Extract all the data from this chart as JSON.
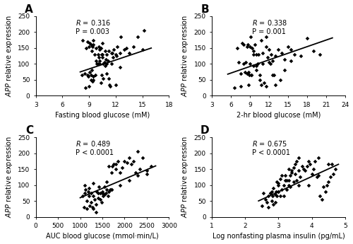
{
  "panels": [
    {
      "label": "A",
      "xlabel": "Fasting blood glucose (mM)",
      "xlim": [
        3,
        18
      ],
      "ylim": [
        0,
        250
      ],
      "xticks": [
        3,
        6,
        9,
        12,
        15,
        18
      ],
      "yticks": [
        0,
        50,
        100,
        150,
        200,
        250
      ],
      "R": "0.316",
      "P": "P = 0.003",
      "x": [
        8.2,
        8.5,
        8.6,
        8.7,
        8.8,
        8.9,
        9.0,
        9.0,
        9.1,
        9.1,
        9.2,
        9.2,
        9.3,
        9.3,
        9.4,
        9.4,
        9.5,
        9.5,
        9.5,
        9.6,
        9.7,
        9.8,
        9.9,
        10.0,
        10.0,
        10.1,
        10.1,
        10.2,
        10.2,
        10.3,
        10.3,
        10.4,
        10.4,
        10.5,
        10.5,
        10.6,
        10.6,
        10.7,
        10.8,
        10.8,
        10.9,
        11.0,
        11.0,
        11.1,
        11.2,
        11.3,
        11.4,
        11.5,
        11.5,
        11.6,
        11.7,
        11.8,
        12.0,
        12.1,
        12.2,
        12.5,
        12.6,
        13.0,
        13.2,
        13.5,
        14.0,
        14.5,
        15.0,
        15.2,
        8.3,
        9.2,
        9.8,
        10.5,
        11.2,
        12.0,
        8.8,
        9.5,
        10.2,
        11.0,
        12.5
      ],
      "y": [
        65,
        70,
        25,
        150,
        170,
        60,
        155,
        30,
        75,
        165,
        160,
        50,
        140,
        80,
        155,
        45,
        50,
        160,
        175,
        130,
        65,
        150,
        100,
        130,
        100,
        155,
        120,
        145,
        110,
        40,
        150,
        65,
        130,
        130,
        165,
        55,
        100,
        105,
        140,
        95,
        115,
        100,
        130,
        110,
        55,
        35,
        30,
        135,
        100,
        135,
        120,
        145,
        35,
        125,
        155,
        135,
        185,
        145,
        150,
        135,
        155,
        185,
        145,
        205,
        175,
        65,
        110,
        120,
        140,
        130,
        65,
        60,
        100,
        70,
        90
      ],
      "line_x": [
        8.0,
        16.0
      ],
      "line_y": [
        75,
        150
      ]
    },
    {
      "label": "B",
      "xlabel": "2-hr blood glucose (mM)",
      "xlim": [
        3,
        24
      ],
      "ylim": [
        0,
        250
      ],
      "xticks": [
        3,
        6,
        9,
        12,
        15,
        18,
        21,
        24
      ],
      "yticks": [
        0,
        50,
        100,
        150,
        200,
        250
      ],
      "R": "0.338",
      "P": "P = 0.001",
      "x": [
        6.5,
        7.0,
        7.2,
        7.5,
        7.8,
        8.0,
        8.0,
        8.2,
        8.3,
        8.5,
        8.5,
        8.7,
        8.8,
        8.9,
        9.0,
        9.0,
        9.1,
        9.2,
        9.3,
        9.5,
        9.5,
        9.6,
        9.8,
        10.0,
        10.0,
        10.2,
        10.3,
        10.5,
        10.5,
        10.8,
        11.0,
        11.0,
        11.2,
        11.5,
        11.5,
        11.8,
        12.0,
        12.0,
        12.3,
        12.5,
        12.5,
        13.0,
        13.0,
        13.5,
        14.0,
        14.5,
        15.0,
        15.5,
        16.0,
        17.0,
        18.0,
        19.0,
        20.0,
        7.5,
        8.8,
        10.0,
        11.5,
        12.8,
        14.5,
        9.2,
        10.8,
        12.2,
        13.8,
        15.5
      ],
      "y": [
        25,
        150,
        105,
        30,
        165,
        160,
        100,
        75,
        105,
        155,
        70,
        160,
        35,
        65,
        155,
        100,
        185,
        65,
        150,
        140,
        130,
        95,
        160,
        80,
        130,
        100,
        130,
        50,
        65,
        175,
        135,
        100,
        40,
        30,
        185,
        120,
        145,
        105,
        130,
        110,
        65,
        35,
        125,
        145,
        135,
        115,
        155,
        145,
        130,
        125,
        180,
        140,
        130,
        70,
        75,
        95,
        155,
        65,
        80,
        65,
        35,
        100,
        50,
        110
      ],
      "line_x": [
        5.5,
        22.0
      ],
      "line_y": [
        68,
        182
      ]
    },
    {
      "label": "C",
      "xlabel": "AUC blood glucose (mmol·min/L)",
      "xlim": [
        0,
        3000
      ],
      "ylim": [
        0,
        250
      ],
      "xticks": [
        0,
        500,
        1000,
        1500,
        2000,
        2500,
        3000
      ],
      "yticks": [
        0,
        50,
        100,
        150,
        200,
        250
      ],
      "R": "0.489",
      "P": "P < 0.0001",
      "x": [
        1050,
        1080,
        1100,
        1120,
        1150,
        1150,
        1180,
        1200,
        1200,
        1220,
        1250,
        1250,
        1280,
        1300,
        1300,
        1320,
        1350,
        1350,
        1380,
        1400,
        1400,
        1420,
        1450,
        1450,
        1480,
        1500,
        1500,
        1520,
        1550,
        1550,
        1580,
        1600,
        1600,
        1620,
        1650,
        1650,
        1680,
        1700,
        1700,
        1720,
        1750,
        1800,
        1800,
        1850,
        1900,
        1950,
        2000,
        2050,
        2100,
        2150,
        2200,
        2250,
        2300,
        2350,
        2400,
        2500,
        2600,
        1100,
        1300,
        1500,
        1700,
        1900,
        2100,
        2300,
        2500
      ],
      "y": [
        65,
        30,
        75,
        85,
        25,
        50,
        80,
        65,
        90,
        35,
        45,
        75,
        30,
        25,
        65,
        55,
        15,
        40,
        80,
        60,
        75,
        95,
        75,
        55,
        45,
        80,
        75,
        65,
        70,
        95,
        75,
        85,
        110,
        65,
        80,
        160,
        85,
        140,
        85,
        160,
        165,
        165,
        150,
        175,
        140,
        155,
        175,
        170,
        185,
        165,
        175,
        140,
        205,
        150,
        185,
        145,
        160,
        100,
        105,
        75,
        85,
        100,
        115,
        130,
        135
      ],
      "line_x": [
        1000,
        2700
      ],
      "line_y": [
        60,
        160
      ]
    },
    {
      "label": "D",
      "xlabel": "Log nonfasting plasma insulin (pg/mL)",
      "xlim": [
        1,
        5
      ],
      "ylim": [
        0,
        250
      ],
      "xticks": [
        1,
        2,
        3,
        4,
        5
      ],
      "yticks": [
        0,
        50,
        100,
        150,
        200,
        250
      ],
      "R": "0.675",
      "P": "P < 0.0001",
      "x": [
        2.5,
        2.6,
        2.65,
        2.7,
        2.7,
        2.75,
        2.8,
        2.8,
        2.82,
        2.85,
        2.85,
        2.9,
        2.9,
        2.92,
        2.95,
        2.95,
        3.0,
        3.0,
        3.0,
        3.05,
        3.05,
        3.1,
        3.1,
        3.15,
        3.15,
        3.2,
        3.2,
        3.25,
        3.25,
        3.3,
        3.3,
        3.35,
        3.35,
        3.4,
        3.4,
        3.45,
        3.45,
        3.5,
        3.5,
        3.55,
        3.55,
        3.6,
        3.6,
        3.65,
        3.7,
        3.75,
        3.8,
        3.85,
        3.9,
        3.95,
        4.0,
        4.05,
        4.1,
        4.15,
        4.2,
        4.25,
        4.3,
        4.35,
        4.4,
        4.45,
        4.5,
        4.55,
        4.6,
        4.65,
        4.7,
        2.55,
        2.75,
        3.0,
        3.3,
        3.6,
        3.9,
        4.2,
        4.5
      ],
      "y": [
        35,
        55,
        45,
        65,
        30,
        75,
        80,
        50,
        65,
        40,
        90,
        70,
        45,
        80,
        110,
        65,
        105,
        80,
        100,
        65,
        120,
        85,
        130,
        100,
        65,
        115,
        130,
        85,
        115,
        100,
        150,
        130,
        95,
        140,
        145,
        110,
        155,
        165,
        135,
        115,
        175,
        145,
        185,
        125,
        160,
        150,
        145,
        160,
        175,
        165,
        135,
        150,
        175,
        125,
        185,
        65,
        55,
        95,
        80,
        100,
        110,
        125,
        165,
        135,
        150,
        75,
        75,
        80,
        115,
        100,
        100,
        130,
        165
      ],
      "line_x": [
        2.4,
        4.8
      ],
      "line_y": [
        50,
        165
      ]
    }
  ],
  "marker_size": 8,
  "marker_color": "black",
  "line_color": "black",
  "line_width": 1.3,
  "label_fontsize": 7,
  "tick_fontsize": 6.5,
  "annot_fontsize": 7,
  "ylabel_fontsize": 7,
  "panel_label_fontsize": 11
}
